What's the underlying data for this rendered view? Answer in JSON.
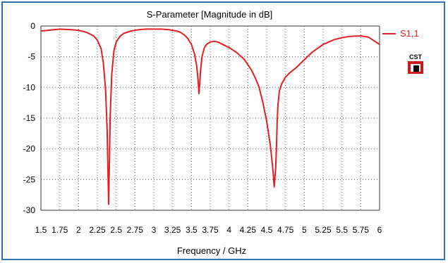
{
  "chart_data": {
    "type": "line",
    "title": "S-Parameter [Magnitude in dB]",
    "xlabel": "Frequency / GHz",
    "ylabel": "",
    "xlim": [
      1.5,
      6
    ],
    "ylim": [
      -30,
      0
    ],
    "x_ticks": [
      "1.5",
      "1.75",
      "2",
      "2.25",
      "2.5",
      "2.75",
      "3",
      "3.25",
      "3.5",
      "3.75",
      "4",
      "4.25",
      "4.5",
      "4.75",
      "5",
      "5.25",
      "5.5",
      "5.75",
      "6"
    ],
    "y_ticks": [
      "0",
      "-5",
      "-10",
      "-15",
      "-20",
      "-25",
      "-30"
    ],
    "grid": true,
    "legend_position": "right",
    "series": [
      {
        "name": "S1,1",
        "color": "#e02020",
        "x": [
          1.5,
          1.6,
          1.75,
          1.9,
          2.0,
          2.1,
          2.2,
          2.25,
          2.3,
          2.33,
          2.36,
          2.38,
          2.39,
          2.4,
          2.41,
          2.42,
          2.44,
          2.47,
          2.5,
          2.55,
          2.6,
          2.7,
          2.8,
          2.9,
          3.0,
          3.1,
          3.2,
          3.3,
          3.35,
          3.4,
          3.45,
          3.5,
          3.54,
          3.57,
          3.59,
          3.6,
          3.61,
          3.62,
          3.64,
          3.67,
          3.7,
          3.75,
          3.8,
          3.85,
          3.9,
          4.0,
          4.1,
          4.2,
          4.3,
          4.35,
          4.4,
          4.45,
          4.5,
          4.55,
          4.58,
          4.6,
          4.62,
          4.63,
          4.64,
          4.65,
          4.67,
          4.7,
          4.75,
          4.8,
          4.9,
          5.0,
          5.1,
          5.25,
          5.4,
          5.5,
          5.6,
          5.75,
          5.85,
          5.95,
          6.0
        ],
        "values": [
          -0.8,
          -0.7,
          -0.5,
          -0.6,
          -0.7,
          -1.0,
          -1.6,
          -2.3,
          -3.7,
          -6.0,
          -10.5,
          -17,
          -23,
          -29,
          -22,
          -15,
          -8,
          -4,
          -2.6,
          -1.7,
          -1.2,
          -0.8,
          -0.6,
          -0.5,
          -0.5,
          -0.5,
          -0.6,
          -0.8,
          -1.0,
          -1.4,
          -2.0,
          -3.0,
          -4.5,
          -6.5,
          -9.0,
          -11.0,
          -9.5,
          -7.5,
          -5.0,
          -3.6,
          -3.0,
          -2.6,
          -2.5,
          -2.6,
          -2.9,
          -3.5,
          -4.3,
          -5.4,
          -7.2,
          -8.5,
          -10.0,
          -12.5,
          -15.5,
          -19.5,
          -23,
          -26.2,
          -23,
          -19.5,
          -15.5,
          -12.8,
          -10.5,
          -9.4,
          -8.3,
          -7.7,
          -6.7,
          -5.5,
          -4.3,
          -3.0,
          -2.2,
          -1.9,
          -1.7,
          -1.6,
          -1.8,
          -2.6,
          -3.0
        ]
      }
    ]
  },
  "logo": {
    "text": "CST"
  }
}
